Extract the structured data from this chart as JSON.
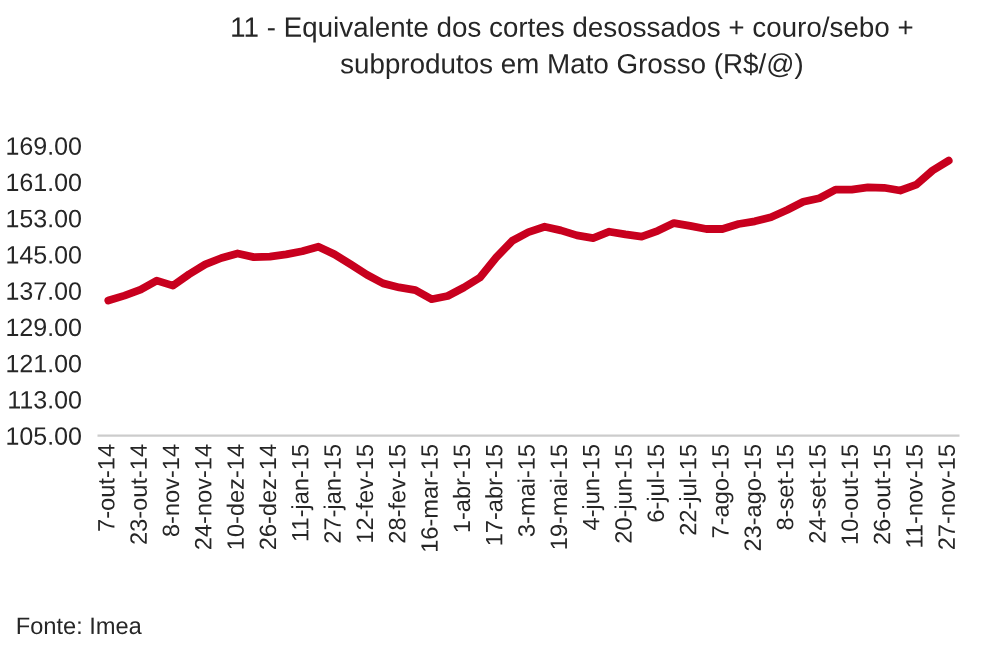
{
  "chart_data": {
    "type": "line",
    "title": "11 - Equivalente dos cortes desossados + couro/sebo +\nsubprodutos em Mato Grosso (R$/@)",
    "categories": [
      "7-out-14",
      null,
      "23-out-14",
      null,
      "8-nov-14",
      null,
      "24-nov-14",
      null,
      "10-dez-14",
      null,
      "26-dez-14",
      null,
      "11-jan-15",
      null,
      "27-jan-15",
      null,
      "12-fev-15",
      null,
      "28-fev-15",
      null,
      "16-mar-15",
      null,
      "1-abr-15",
      null,
      "17-abr-15",
      null,
      "3-mai-15",
      null,
      "19-mai-15",
      null,
      "4-jun-15",
      null,
      "20-jun-15",
      null,
      "6-jul-15",
      null,
      "22-jul-15",
      null,
      "7-ago-15",
      null,
      "23-ago-15",
      null,
      "8-set-15",
      null,
      "24-set-15",
      null,
      "10-out-15",
      null,
      "26-out-15",
      null,
      "11-nov-15",
      null,
      "27-nov-15"
    ],
    "series": [
      {
        "color": "#c8001e",
        "values": [
          134.8,
          135.9,
          137.2,
          139.2,
          138.1,
          140.6,
          142.8,
          144.2,
          145.2,
          144.4,
          144.5,
          145.0,
          145.7,
          146.7,
          145.0,
          142.8,
          140.5,
          138.6,
          137.7,
          137.1,
          135.1,
          135.8,
          137.7,
          139.9,
          144.3,
          148.0,
          149.9,
          151.1,
          150.3,
          149.2,
          148.6,
          150.0,
          149.4,
          148.9,
          150.2,
          151.9,
          151.3,
          150.6,
          150.6,
          151.7,
          152.3,
          153.2,
          154.8,
          156.6,
          157.4,
          159.3,
          159.3,
          159.8,
          159.7,
          159.1,
          160.4,
          163.5,
          165.7
        ]
      }
    ],
    "ylim": [
      105,
      169
    ],
    "yticks": [
      {
        "value": 105,
        "label": "105.00"
      },
      {
        "value": 113,
        "label": "113.00"
      },
      {
        "value": 121,
        "label": "121.00"
      },
      {
        "value": 129,
        "label": "129.00"
      },
      {
        "value": 137,
        "label": "137.00"
      },
      {
        "value": 145,
        "label": "145.00"
      },
      {
        "value": 153,
        "label": "153.00"
      },
      {
        "value": 161,
        "label": "161.00"
      },
      {
        "value": 169,
        "label": "169.00"
      }
    ],
    "grid": false,
    "legend": false,
    "marker": "none",
    "line_style": "solid",
    "annotations": [
      "Fonte: Imea"
    ]
  }
}
